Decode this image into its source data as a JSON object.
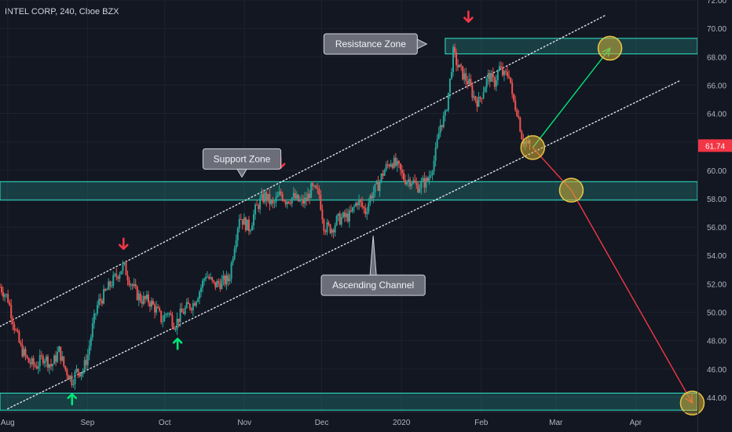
{
  "header": {
    "title": "INTEL CORP, 240, Cboe BZX"
  },
  "chart_data": {
    "type": "candlestick",
    "title": "INTEL CORP, 240, Cboe BZX",
    "ylim": [
      43,
      72
    ],
    "y_ticks": [
      "72.00",
      "70.00",
      "68.00",
      "66.00",
      "64.00",
      "62.00",
      "60.00",
      "58.00",
      "56.00",
      "54.00",
      "52.00",
      "50.00",
      "48.00",
      "46.00",
      "44.00"
    ],
    "y_tick_values": [
      72,
      70,
      68,
      66,
      64,
      62,
      60,
      58,
      56,
      54,
      52,
      50,
      48,
      46,
      44
    ],
    "x_labels": [
      "Aug",
      "Sep",
      "Oct",
      "Nov",
      "Dec",
      "2020",
      "Feb",
      "Mar",
      "Apr"
    ],
    "x_label_days": [
      0,
      31,
      61,
      92,
      122,
      153,
      184,
      213,
      244
    ],
    "xlim": [
      -3,
      268
    ],
    "last_price": {
      "label": "61.74",
      "value": 61.74,
      "color": "#f23645"
    },
    "zones": [
      {
        "name": "Resistance Zone",
        "y_low": 68.2,
        "y_high": 69.3,
        "start_day": 170
      },
      {
        "name": "Support Zone",
        "y_low": 57.9,
        "y_high": 59.2,
        "start_day": -3
      },
      {
        "name": "",
        "y_low": 43.1,
        "y_high": 44.3,
        "start_day": -3
      }
    ],
    "channel_lines": [
      {
        "points": [
          [
            -3,
            49.0
          ],
          [
            232,
            70.9
          ]
        ]
      },
      {
        "points": [
          [
            0,
            43.2
          ],
          [
            261,
            66.3
          ]
        ]
      }
    ],
    "annotations": [
      {
        "text": "Resistance Zone",
        "x_day": 141,
        "y": 68.9,
        "pointer": "right"
      },
      {
        "text": "Support Zone",
        "x_day": 91,
        "y": 60.8,
        "pointer": "down"
      },
      {
        "text": "Ascending Channel",
        "x_day": 142,
        "y": 51.9,
        "pointer": "up"
      }
    ],
    "arrows": [
      {
        "dir": "down",
        "color": "#f23645",
        "x_day": 45,
        "y": 54.8
      },
      {
        "dir": "down",
        "color": "#f23645",
        "x_day": 106,
        "y": 60.5
      },
      {
        "dir": "down",
        "color": "#f23645",
        "x_day": 179,
        "y": 70.8
      },
      {
        "dir": "up",
        "color": "#00e676",
        "x_day": 66,
        "y": 47.8
      },
      {
        "dir": "up",
        "color": "#00e676",
        "x_day": 25,
        "y": 43.9
      }
    ],
    "projection": {
      "circles": [
        [
          204,
          61.6
        ],
        [
          219,
          58.6
        ],
        [
          234,
          68.6
        ],
        [
          266,
          43.6
        ]
      ],
      "up_path": [
        [
          204,
          61.6
        ],
        [
          234,
          68.6
        ]
      ],
      "down_path": [
        [
          204,
          61.6
        ],
        [
          219,
          58.6
        ],
        [
          266,
          43.6
        ]
      ],
      "up_color": "#00e676",
      "down_color": "#f23645"
    },
    "colors": {
      "up": "#26a69a",
      "down": "#ef5350",
      "zone": "#26a69a",
      "bg": "#131722"
    },
    "price_path": [
      [
        -3,
        51.8
      ],
      [
        0,
        51.0
      ],
      [
        3,
        48.7
      ],
      [
        5,
        47.5
      ],
      [
        8,
        46.5
      ],
      [
        11,
        46.2
      ],
      [
        14,
        46.9
      ],
      [
        17,
        46.2
      ],
      [
        20,
        47.3
      ],
      [
        22,
        46.1
      ],
      [
        25,
        45.2
      ],
      [
        27,
        45.9
      ],
      [
        29,
        45.8
      ],
      [
        31,
        46.9
      ],
      [
        33,
        49.0
      ],
      [
        35,
        50.6
      ],
      [
        37,
        51.1
      ],
      [
        40,
        52.0
      ],
      [
        42,
        52.5
      ],
      [
        45,
        53.3
      ],
      [
        47,
        52.4
      ],
      [
        50,
        51.3
      ],
      [
        52,
        50.9
      ],
      [
        55,
        50.8
      ],
      [
        58,
        50.1
      ],
      [
        60,
        49.4
      ],
      [
        62,
        50.1
      ],
      [
        65,
        49.1
      ],
      [
        67,
        49.8
      ],
      [
        70,
        50.4
      ],
      [
        72,
        50.6
      ],
      [
        75,
        51.7
      ],
      [
        77,
        52.7
      ],
      [
        80,
        51.9
      ],
      [
        83,
        52.1
      ],
      [
        86,
        52.3
      ],
      [
        88,
        54.7
      ],
      [
        90,
        56.8
      ],
      [
        92,
        56.3
      ],
      [
        94,
        55.9
      ],
      [
        96,
        57.1
      ],
      [
        98,
        57.8
      ],
      [
        100,
        58.2
      ],
      [
        103,
        57.5
      ],
      [
        106,
        58.4
      ],
      [
        108,
        57.9
      ],
      [
        111,
        58.1
      ],
      [
        114,
        57.7
      ],
      [
        116,
        57.9
      ],
      [
        118,
        58.7
      ],
      [
        121,
        58.3
      ],
      [
        123,
        56.0
      ],
      [
        126,
        55.9
      ],
      [
        128,
        56.5
      ],
      [
        131,
        56.7
      ],
      [
        133,
        56.8
      ],
      [
        136,
        57.9
      ],
      [
        139,
        57.1
      ],
      [
        141,
        58.2
      ],
      [
        144,
        59.0
      ],
      [
        146,
        59.9
      ],
      [
        149,
        60.7
      ],
      [
        152,
        60.1
      ],
      [
        154,
        59.4
      ],
      [
        157,
        59.3
      ],
      [
        159,
        58.8
      ],
      [
        161,
        59.1
      ],
      [
        163,
        59.2
      ],
      [
        166,
        60.9
      ],
      [
        168,
        63.2
      ],
      [
        170,
        63.8
      ],
      [
        172,
        66.5
      ],
      [
        173,
        68.3
      ],
      [
        175,
        67.3
      ],
      [
        177,
        66.7
      ],
      [
        179,
        66.2
      ],
      [
        181,
        65.2
      ],
      [
        183,
        64.8
      ],
      [
        185,
        65.8
      ],
      [
        187,
        66.7
      ],
      [
        189,
        66.1
      ],
      [
        191,
        67.2
      ],
      [
        193,
        66.6
      ],
      [
        195,
        66.9
      ],
      [
        196,
        65.1
      ],
      [
        198,
        64.2
      ],
      [
        200,
        62.2
      ],
      [
        202,
        61.8
      ],
      [
        203,
        61.74
      ]
    ]
  }
}
